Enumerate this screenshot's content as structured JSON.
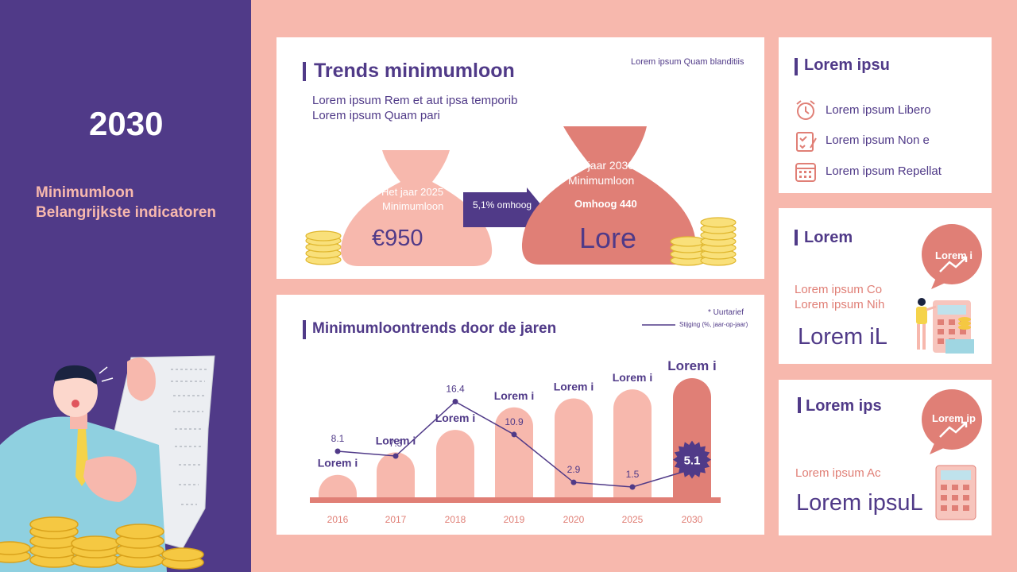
{
  "left": {
    "year": "2030",
    "subtitle_line1": "Minimumloon",
    "subtitle_line2": "Belangrijkste indicatoren"
  },
  "trends": {
    "title": "Trends minimumloon",
    "note": "Lorem ipsum Quam blanditiis",
    "desc_line1": "Lorem ipsum Rem et aut ipsa temporib",
    "desc_line2": "Lorem ipsum Quam pari",
    "bag_left_year": "Het jaar 2025",
    "bag_left_label": "Minimumloon",
    "bag_left_value": "€950",
    "arrow_label": "5,1% omhoog",
    "bag_right_year": "Het jaar 2030",
    "bag_right_label": "Minimumloon",
    "bag_right_up": "Omhoog 440",
    "bag_right_value": "Lore"
  },
  "chart_card": {
    "title": "Minimumloontrends door de jaren",
    "note": "* Uurtarief",
    "legend": "Stijging (%, jaar-op-jaar)"
  },
  "chart_data": {
    "type": "bar",
    "categories": [
      "2016",
      "2017",
      "2018",
      "2019",
      "2020",
      "2025",
      "2030"
    ],
    "bar_labels": [
      "Lorem i",
      "Lorem i",
      "Lorem i",
      "Lorem i",
      "Lorem i",
      "Lorem i",
      "Lorem i"
    ],
    "line_values": [
      8.1,
      7.3,
      16.4,
      10.9,
      2.9,
      1.5,
      5.1
    ],
    "line_labels": [
      "8.1",
      "7.3",
      "16.4",
      "10.9",
      "2.9",
      "1.5",
      "5.1"
    ],
    "bar_levels": [
      1,
      2,
      3,
      4,
      4.4,
      4.8,
      5.3
    ]
  },
  "panel1": {
    "title": "Lorem ipsu",
    "items": [
      "Lorem ipsum Libero",
      "Lorem ipsum Non e",
      "Lorem ipsum Repellat"
    ]
  },
  "panel2": {
    "title": "Lorem",
    "bubble": "Lorem i",
    "line1": "Lorem ipsum Co",
    "line2": "Lorem ipsum Nih",
    "big": "Lorem iL"
  },
  "panel3": {
    "title": "Lorem ips",
    "bubble": "Lorem ip",
    "line1": "Lorem ipsum Ac",
    "big": "Lorem ipsuL"
  },
  "colors": {
    "purple": "#503a88",
    "pink": "#f7b8ad",
    "coral": "#e07f76",
    "gold": "#f5c842"
  }
}
